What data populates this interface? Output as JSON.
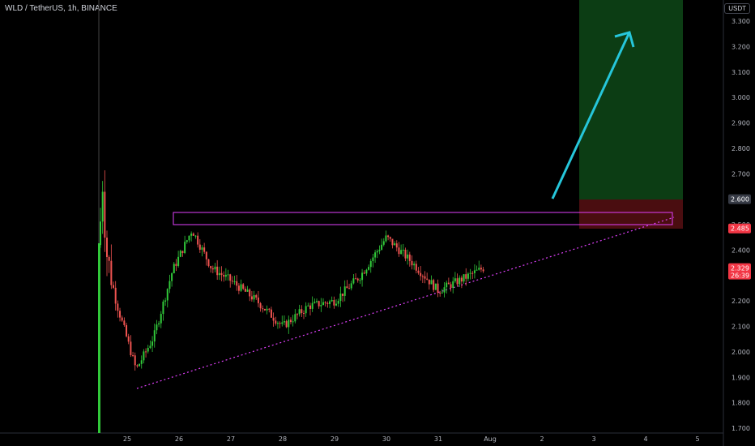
{
  "header": {
    "title": "WLD / TetherUS, 1h, BINANCE"
  },
  "currency": "USDT",
  "colors": {
    "up": "#26a69a",
    "up_bright": "#31c93a",
    "down": "#ef5350",
    "zone": "#e040fb",
    "trendline": "#e040fb",
    "arrow": "#26c6da",
    "target_zone": "#0c3d14",
    "stop_zone": "#4a0d10"
  },
  "chart_data": {
    "type": "candlestick",
    "x_ticks": [
      "25",
      "26",
      "27",
      "28",
      "29",
      "30",
      "31",
      "Aug",
      "2",
      "3",
      "4",
      "5"
    ],
    "y_ticks": [
      "3.300",
      "3.200",
      "3.100",
      "3.000",
      "2.900",
      "2.800",
      "2.700",
      "2.600",
      "2.500",
      "2.400",
      "2.300",
      "2.200",
      "2.100",
      "2.000",
      "1.900",
      "1.800",
      "1.700"
    ],
    "ylim": [
      1.7,
      3.35
    ],
    "price_labels": [
      {
        "value": 2.6,
        "text": "2.600",
        "color": "#363a45"
      },
      {
        "value": 2.485,
        "text": "2.485",
        "color": "#f23645"
      },
      {
        "value": 2.329,
        "text": "2.329",
        "sub": "26:39",
        "color": "#f23645"
      }
    ],
    "approx_path": [
      {
        "t": "Jul 24 12:00",
        "close": 2.42
      },
      {
        "t": "Jul 24 14:00",
        "close": 2.7
      },
      {
        "t": "Jul 24 17:00",
        "close": 2.4
      },
      {
        "t": "Jul 24 21:00",
        "close": 2.2
      },
      {
        "t": "Jul 25 04:00",
        "close": 1.93
      },
      {
        "t": "Jul 25 12:00",
        "close": 2.06
      },
      {
        "t": "Jul 25 20:00",
        "close": 2.32
      },
      {
        "t": "Jul 26 05:00",
        "close": 2.48
      },
      {
        "t": "Jul 26 14:00",
        "close": 2.33
      },
      {
        "t": "Jul 27 00:00",
        "close": 2.28
      },
      {
        "t": "Jul 27 12:00",
        "close": 2.2
      },
      {
        "t": "Jul 28 00:00",
        "close": 2.1
      },
      {
        "t": "Jul 28 12:00",
        "close": 2.18
      },
      {
        "t": "Jul 29 00:00",
        "close": 2.2
      },
      {
        "t": "Jul 29 12:00",
        "close": 2.3
      },
      {
        "t": "Jul 30 00:00",
        "close": 2.45
      },
      {
        "t": "Jul 30 12:00",
        "close": 2.35
      },
      {
        "t": "Jul 31 00:00",
        "close": 2.24
      },
      {
        "t": "Jul 31 12:00",
        "close": 2.29
      },
      {
        "t": "Aug 01 00:00",
        "close": 2.33
      }
    ],
    "resistance_zone": {
      "low": 2.49,
      "high": 2.55
    },
    "target_zone": {
      "low": 2.6,
      "high": 3.35
    },
    "stop_zone": {
      "low": 2.48,
      "high": 2.6
    }
  }
}
